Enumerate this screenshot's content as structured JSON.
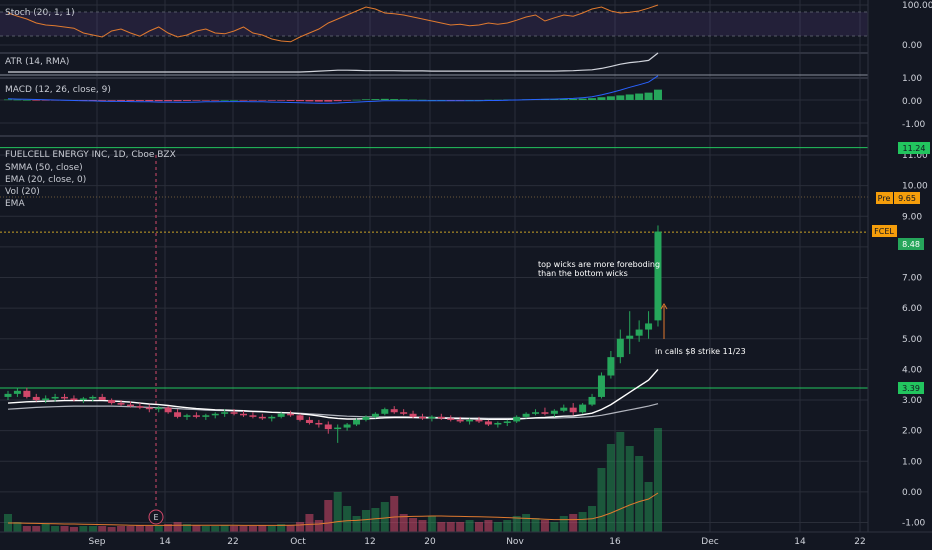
{
  "colors": {
    "background": "#131722",
    "grid": "#2a2e39",
    "up": "#26a65b",
    "down": "#d2486a",
    "stoch": "#e07a2f",
    "atr": "#d1d4dc",
    "hline": "#22c55e",
    "pre": "#f59e0b",
    "fcel": "#f59e0b"
  },
  "panels": {
    "stoch": {
      "label": "Stoch (20, 1, 1)",
      "ticks": [
        "100.00",
        "0.00"
      ]
    },
    "atr": {
      "label": "ATR (14, RMA)",
      "ticks": [
        "1.00"
      ]
    },
    "macd": {
      "label": "MACD (12, 26, close, 9)",
      "ticks": [
        "0.00",
        "-1.00"
      ]
    },
    "price": {
      "legend": [
        "FUELCELL ENERGY INC, 1D, Cboe BZX",
        "SMMA (50, close)",
        "EMA (20, close, 0)",
        "Vol (20)",
        "EMA"
      ],
      "ticks": [
        "11.00",
        "10.00",
        "9.00",
        "8.00",
        "7.00",
        "6.00",
        "5.00",
        "4.00",
        "3.00",
        "2.00",
        "1.00",
        "0.00",
        "-1.00"
      ]
    }
  },
  "tags": {
    "line_upper": "11.24",
    "pre_label": "Pre",
    "pre_value": "9.65",
    "fcel_label": "FCEL",
    "last_price": "8.48",
    "line_lower": "3.39"
  },
  "annotations": {
    "wicks_line1": "top wicks are more foreboding",
    "wicks_line2": "than the bottom wicks",
    "calls": "in calls $8 strike 11/23",
    "earnings_marker": "E"
  },
  "time_axis": [
    "Sep",
    "14",
    "22",
    "Oct",
    "12",
    "20",
    "Nov",
    "16",
    "Dec",
    "14",
    "22"
  ],
  "chart_data": {
    "type": "candlestick",
    "ylim": [
      -1.0,
      11.5
    ],
    "hlines": [
      11.24,
      3.39
    ],
    "last_price": 8.48,
    "ohlc": [
      [
        3.1,
        3.3,
        3.0,
        3.2
      ],
      [
        3.2,
        3.4,
        3.1,
        3.3
      ],
      [
        3.3,
        3.4,
        3.05,
        3.1
      ],
      [
        3.1,
        3.2,
        2.95,
        3.0
      ],
      [
        3.0,
        3.15,
        2.9,
        3.05
      ],
      [
        3.05,
        3.2,
        2.95,
        3.1
      ],
      [
        3.1,
        3.2,
        3.0,
        3.05
      ],
      [
        3.05,
        3.15,
        2.95,
        3.0
      ],
      [
        3.0,
        3.1,
        2.9,
        3.05
      ],
      [
        3.05,
        3.15,
        2.95,
        3.1
      ],
      [
        3.1,
        3.2,
        3.0,
        3.0
      ],
      [
        3.0,
        3.05,
        2.85,
        2.9
      ],
      [
        2.9,
        3.0,
        2.8,
        2.85
      ],
      [
        2.85,
        2.95,
        2.75,
        2.8
      ],
      [
        2.8,
        2.9,
        2.7,
        2.75
      ],
      [
        2.75,
        2.85,
        2.6,
        2.7
      ],
      [
        2.7,
        2.8,
        2.6,
        2.75
      ],
      [
        2.75,
        2.8,
        2.55,
        2.6
      ],
      [
        2.6,
        2.7,
        2.4,
        2.45
      ],
      [
        2.45,
        2.55,
        2.35,
        2.5
      ],
      [
        2.5,
        2.6,
        2.4,
        2.45
      ],
      [
        2.45,
        2.55,
        2.35,
        2.5
      ],
      [
        2.5,
        2.6,
        2.4,
        2.55
      ],
      [
        2.55,
        2.7,
        2.45,
        2.6
      ],
      [
        2.6,
        2.7,
        2.5,
        2.55
      ],
      [
        2.55,
        2.65,
        2.45,
        2.5
      ],
      [
        2.5,
        2.6,
        2.4,
        2.45
      ],
      [
        2.45,
        2.55,
        2.35,
        2.4
      ],
      [
        2.4,
        2.5,
        2.3,
        2.45
      ],
      [
        2.45,
        2.6,
        2.4,
        2.55
      ],
      [
        2.55,
        2.65,
        2.45,
        2.5
      ],
      [
        2.5,
        2.55,
        2.3,
        2.35
      ],
      [
        2.35,
        2.45,
        2.2,
        2.25
      ],
      [
        2.25,
        2.35,
        2.1,
        2.2
      ],
      [
        2.2,
        2.3,
        1.9,
        2.05
      ],
      [
        2.05,
        2.2,
        1.6,
        2.1
      ],
      [
        2.1,
        2.25,
        2.0,
        2.2
      ],
      [
        2.2,
        2.4,
        2.15,
        2.35
      ],
      [
        2.35,
        2.5,
        2.3,
        2.45
      ],
      [
        2.45,
        2.6,
        2.4,
        2.55
      ],
      [
        2.55,
        2.75,
        2.5,
        2.7
      ],
      [
        2.7,
        2.8,
        2.55,
        2.6
      ],
      [
        2.6,
        2.7,
        2.5,
        2.55
      ],
      [
        2.55,
        2.65,
        2.4,
        2.45
      ],
      [
        2.45,
        2.55,
        2.35,
        2.4
      ],
      [
        2.4,
        2.5,
        2.3,
        2.45
      ],
      [
        2.45,
        2.55,
        2.35,
        2.4
      ],
      [
        2.4,
        2.5,
        2.3,
        2.35
      ],
      [
        2.35,
        2.45,
        2.25,
        2.3
      ],
      [
        2.3,
        2.4,
        2.2,
        2.35
      ],
      [
        2.35,
        2.45,
        2.25,
        2.3
      ],
      [
        2.3,
        2.35,
        2.15,
        2.2
      ],
      [
        2.2,
        2.3,
        2.1,
        2.25
      ],
      [
        2.25,
        2.35,
        2.15,
        2.3
      ],
      [
        2.3,
        2.5,
        2.25,
        2.45
      ],
      [
        2.45,
        2.6,
        2.4,
        2.55
      ],
      [
        2.55,
        2.7,
        2.5,
        2.6
      ],
      [
        2.6,
        2.75,
        2.5,
        2.55
      ],
      [
        2.55,
        2.7,
        2.45,
        2.65
      ],
      [
        2.65,
        2.85,
        2.6,
        2.75
      ],
      [
        2.75,
        2.9,
        2.5,
        2.6
      ],
      [
        2.6,
        2.9,
        2.55,
        2.85
      ],
      [
        2.85,
        3.2,
        2.8,
        3.1
      ],
      [
        3.1,
        3.9,
        3.05,
        3.8
      ],
      [
        3.8,
        4.6,
        3.7,
        4.4
      ],
      [
        4.4,
        5.3,
        4.2,
        5.0
      ],
      [
        5.0,
        5.9,
        4.5,
        5.1
      ],
      [
        5.1,
        5.6,
        4.9,
        5.3
      ],
      [
        5.3,
        5.9,
        5.0,
        5.5
      ],
      [
        5.6,
        8.7,
        5.4,
        8.5
      ]
    ],
    "volume": [
      0.9,
      0.5,
      0.3,
      0.3,
      0.4,
      0.3,
      0.3,
      0.25,
      0.3,
      0.3,
      0.3,
      0.25,
      0.3,
      0.3,
      0.35,
      0.3,
      0.3,
      0.4,
      0.5,
      0.4,
      0.35,
      0.3,
      0.3,
      0.35,
      0.3,
      0.3,
      0.3,
      0.35,
      0.3,
      0.4,
      0.35,
      0.5,
      0.9,
      0.6,
      1.6,
      2.0,
      1.3,
      0.8,
      1.1,
      1.2,
      1.5,
      1.8,
      0.9,
      0.7,
      0.6,
      0.8,
      0.5,
      0.5,
      0.5,
      0.6,
      0.5,
      0.6,
      0.5,
      0.6,
      0.8,
      0.9,
      0.7,
      0.6,
      0.5,
      0.8,
      0.9,
      1.0,
      1.3,
      3.2,
      4.4,
      5.0,
      4.3,
      3.8,
      2.5,
      5.2
    ],
    "stoch": [
      80,
      72,
      65,
      55,
      50,
      48,
      45,
      42,
      30,
      25,
      20,
      35,
      40,
      30,
      22,
      35,
      45,
      30,
      20,
      25,
      35,
      40,
      30,
      28,
      35,
      45,
      30,
      25,
      15,
      10,
      8,
      20,
      30,
      40,
      55,
      65,
      75,
      85,
      95,
      90,
      80,
      78,
      75,
      70,
      65,
      60,
      55,
      50,
      52,
      48,
      50,
      55,
      52,
      55,
      62,
      70,
      75,
      60,
      68,
      75,
      72,
      80,
      90,
      95,
      85,
      80,
      82,
      85,
      92,
      100
    ],
    "atr": [
      0.2,
      0.2,
      0.2,
      0.2,
      0.2,
      0.2,
      0.2,
      0.2,
      0.2,
      0.2,
      0.2,
      0.2,
      0.2,
      0.2,
      0.2,
      0.2,
      0.2,
      0.2,
      0.2,
      0.2,
      0.2,
      0.2,
      0.2,
      0.2,
      0.2,
      0.2,
      0.2,
      0.2,
      0.2,
      0.2,
      0.2,
      0.2,
      0.22,
      0.24,
      0.26,
      0.28,
      0.28,
      0.27,
      0.26,
      0.26,
      0.26,
      0.26,
      0.25,
      0.25,
      0.25,
      0.24,
      0.24,
      0.24,
      0.24,
      0.24,
      0.24,
      0.24,
      0.24,
      0.24,
      0.24,
      0.24,
      0.24,
      0.24,
      0.24,
      0.25,
      0.26,
      0.28,
      0.3,
      0.36,
      0.45,
      0.55,
      0.62,
      0.66,
      0.72,
      1.05
    ],
    "macd_hist": [
      0.02,
      0.01,
      0.0,
      -0.01,
      -0.02,
      -0.02,
      -0.02,
      -0.02,
      -0.03,
      -0.03,
      -0.03,
      -0.03,
      -0.04,
      -0.04,
      -0.04,
      -0.05,
      -0.05,
      -0.05,
      -0.05,
      -0.04,
      -0.03,
      -0.02,
      -0.01,
      0.0,
      0.0,
      -0.01,
      -0.02,
      -0.02,
      -0.03,
      -0.03,
      -0.04,
      -0.05,
      -0.06,
      -0.07,
      -0.07,
      -0.05,
      -0.02,
      0.01,
      0.03,
      0.04,
      0.05,
      0.04,
      0.03,
      0.02,
      0.01,
      0.0,
      0.0,
      -0.01,
      -0.01,
      0.0,
      0.0,
      0.01,
      0.01,
      0.02,
      0.02,
      0.03,
      0.04,
      0.04,
      0.04,
      0.05,
      0.05,
      0.06,
      0.08,
      0.12,
      0.16,
      0.2,
      0.24,
      0.28,
      0.32,
      0.45
    ],
    "macd_line": [
      0.05,
      0.04,
      0.03,
      0.02,
      0.01,
      0.0,
      -0.01,
      -0.02,
      -0.03,
      -0.04,
      -0.05,
      -0.06,
      -0.06,
      -0.07,
      -0.08,
      -0.08,
      -0.09,
      -0.09,
      -0.1,
      -0.1,
      -0.09,
      -0.08,
      -0.08,
      -0.07,
      -0.07,
      -0.07,
      -0.08,
      -0.08,
      -0.09,
      -0.1,
      -0.11,
      -0.12,
      -0.13,
      -0.14,
      -0.14,
      -0.13,
      -0.11,
      -0.09,
      -0.07,
      -0.05,
      -0.03,
      -0.03,
      -0.03,
      -0.03,
      -0.03,
      -0.03,
      -0.03,
      -0.03,
      -0.03,
      -0.03,
      -0.03,
      -0.02,
      -0.02,
      -0.01,
      0.0,
      0.01,
      0.02,
      0.03,
      0.04,
      0.05,
      0.07,
      0.1,
      0.14,
      0.22,
      0.32,
      0.43,
      0.55,
      0.66,
      0.78,
      1.05
    ],
    "smma50": [
      2.7,
      2.72,
      2.74,
      2.76,
      2.77,
      2.78,
      2.79,
      2.8,
      2.8,
      2.8,
      2.8,
      2.8,
      2.79,
      2.78,
      2.77,
      2.76,
      2.75,
      2.74,
      2.72,
      2.7,
      2.69,
      2.67,
      2.66,
      2.65,
      2.64,
      2.63,
      2.62,
      2.61,
      2.6,
      2.59,
      2.58,
      2.57,
      2.55,
      2.53,
      2.51,
      2.49,
      2.47,
      2.46,
      2.45,
      2.45,
      2.45,
      2.45,
      2.45,
      2.44,
      2.44,
      2.43,
      2.43,
      2.42,
      2.42,
      2.41,
      2.41,
      2.4,
      2.4,
      2.4,
      2.4,
      2.4,
      2.41,
      2.41,
      2.41,
      2.42,
      2.43,
      2.44,
      2.46,
      2.5,
      2.56,
      2.62,
      2.68,
      2.74,
      2.8,
      2.88
    ],
    "ema20": [
      2.9,
      2.92,
      2.94,
      2.95,
      2.96,
      2.97,
      2.98,
      2.98,
      2.98,
      2.98,
      2.98,
      2.97,
      2.95,
      2.93,
      2.9,
      2.87,
      2.85,
      2.82,
      2.78,
      2.75,
      2.72,
      2.7,
      2.68,
      2.67,
      2.66,
      2.65,
      2.63,
      2.62,
      2.6,
      2.59,
      2.58,
      2.55,
      2.52,
      2.48,
      2.43,
      2.4,
      2.38,
      2.38,
      2.39,
      2.4,
      2.42,
      2.43,
      2.43,
      2.43,
      2.42,
      2.42,
      2.41,
      2.4,
      2.39,
      2.39,
      2.38,
      2.37,
      2.37,
      2.37,
      2.38,
      2.4,
      2.42,
      2.43,
      2.45,
      2.47,
      2.48,
      2.52,
      2.57,
      2.69,
      2.85,
      3.05,
      3.25,
      3.45,
      3.65,
      4.0
    ],
    "vol_ma": [
      0.45,
      0.45,
      0.44,
      0.43,
      0.42,
      0.41,
      0.4,
      0.4,
      0.39,
      0.38,
      0.37,
      0.36,
      0.35,
      0.34,
      0.33,
      0.33,
      0.33,
      0.33,
      0.34,
      0.34,
      0.34,
      0.34,
      0.34,
      0.34,
      0.34,
      0.33,
      0.33,
      0.33,
      0.33,
      0.33,
      0.34,
      0.35,
      0.38,
      0.4,
      0.45,
      0.52,
      0.56,
      0.58,
      0.62,
      0.66,
      0.7,
      0.75,
      0.77,
      0.78,
      0.79,
      0.8,
      0.8,
      0.79,
      0.78,
      0.77,
      0.76,
      0.75,
      0.74,
      0.72,
      0.7,
      0.68,
      0.66,
      0.64,
      0.62,
      0.62,
      0.62,
      0.63,
      0.66,
      0.78,
      0.95,
      1.15,
      1.35,
      1.52,
      1.65,
      1.95
    ]
  }
}
